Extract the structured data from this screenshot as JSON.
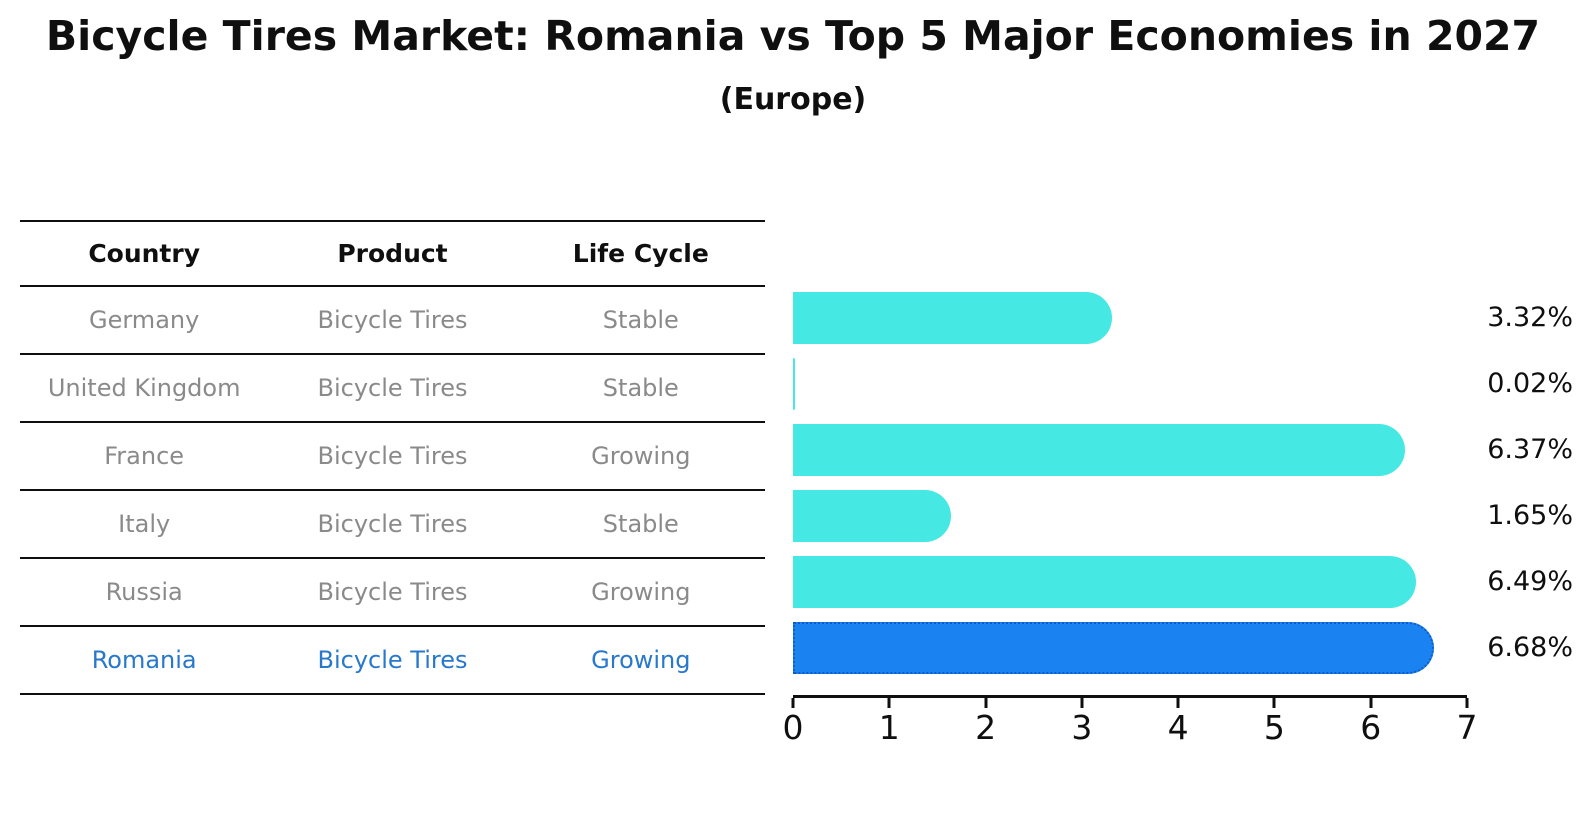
{
  "title": "Bicycle Tires Market: Romania vs Top 5 Major Economies in 2027",
  "subtitle": "(Europe)",
  "table": {
    "headers": [
      "Country",
      "Product",
      "Life Cycle"
    ],
    "rows": [
      {
        "country": "Germany",
        "product": "Bicycle Tires",
        "life_cycle": "Stable",
        "highlight": false
      },
      {
        "country": "United Kingdom",
        "product": "Bicycle Tires",
        "life_cycle": "Stable",
        "highlight": false
      },
      {
        "country": "France",
        "product": "Bicycle Tires",
        "life_cycle": "Growing",
        "highlight": false
      },
      {
        "country": "Italy",
        "product": "Bicycle Tires",
        "life_cycle": "Stable",
        "highlight": false
      },
      {
        "country": "Russia",
        "product": "Bicycle Tires",
        "life_cycle": "Growing",
        "highlight": false
      },
      {
        "country": "Romania",
        "product": "Bicycle Tires",
        "life_cycle": "Growing",
        "highlight": true
      }
    ]
  },
  "chart_data": {
    "type": "bar",
    "orientation": "horizontal",
    "title": "Bicycle Tires Market: Romania vs Top 5 Major Economies in 2027",
    "subtitle": "(Europe)",
    "categories": [
      "Germany",
      "United Kingdom",
      "France",
      "Italy",
      "Russia",
      "Romania"
    ],
    "values": [
      3.32,
      0.02,
      6.37,
      1.65,
      6.49,
      6.68
    ],
    "value_labels": [
      "3.32%",
      "0.02%",
      "6.37%",
      "1.65%",
      "6.49%",
      "6.68%"
    ],
    "xlabel": "",
    "ylabel": "",
    "xlim": [
      0,
      7
    ],
    "xticks": [
      "0",
      "1",
      "2",
      "3",
      "4",
      "5",
      "6",
      "7"
    ],
    "highlight_index": 5,
    "grid": false,
    "legend": false
  },
  "colors": {
    "bar": "#45e8e2",
    "bar_highlight": "#1b82f2",
    "bar_highlight_border": "#0d5dc8",
    "table_text": "#8a8a8a",
    "highlight_text": "#2878cc",
    "ink": "#0f0f0f"
  }
}
